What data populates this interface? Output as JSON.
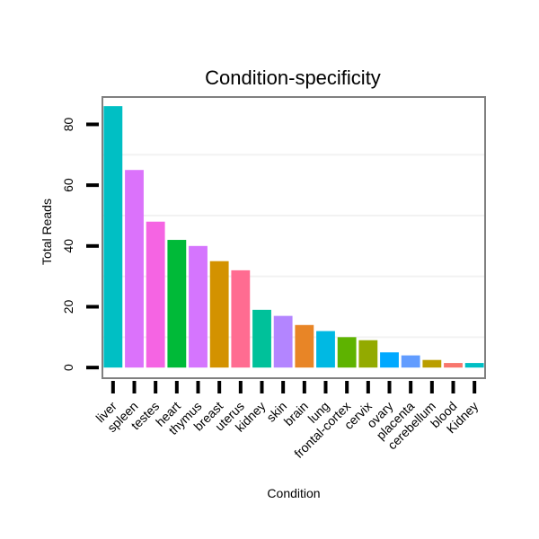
{
  "chart_data": {
    "type": "bar",
    "title": "Condition-specificity",
    "xlabel": "Condition",
    "ylabel": "Total Reads",
    "ylim": [
      -3.5,
      89
    ],
    "yticks": [
      0,
      20,
      40,
      60,
      80
    ],
    "grid": true,
    "categories": [
      "liver",
      "spleen",
      "testes",
      "heart",
      "thymus",
      "breast",
      "uterus",
      "kidney",
      "skin",
      "brain",
      "lung",
      "frontal-cortex",
      "cervix",
      "ovary",
      "placenta",
      "cerebellum",
      "blood",
      "Kidney"
    ],
    "values": [
      86,
      65,
      48,
      42,
      40,
      35,
      32,
      19,
      17,
      14,
      12,
      10,
      9,
      5,
      4,
      2.5,
      1.5,
      1.5
    ],
    "colors": [
      "#00BFC4",
      "#DB72FB",
      "#F564E3",
      "#00BA38",
      "#D575FE",
      "#D39200",
      "#FF6C91",
      "#00C19A",
      "#B385FF",
      "#E88526",
      "#00B9E3",
      "#5EB300",
      "#93AA00",
      "#00A9FF",
      "#619CFF",
      "#BA9E00",
      "#F8766D",
      "#00BFC4"
    ]
  }
}
